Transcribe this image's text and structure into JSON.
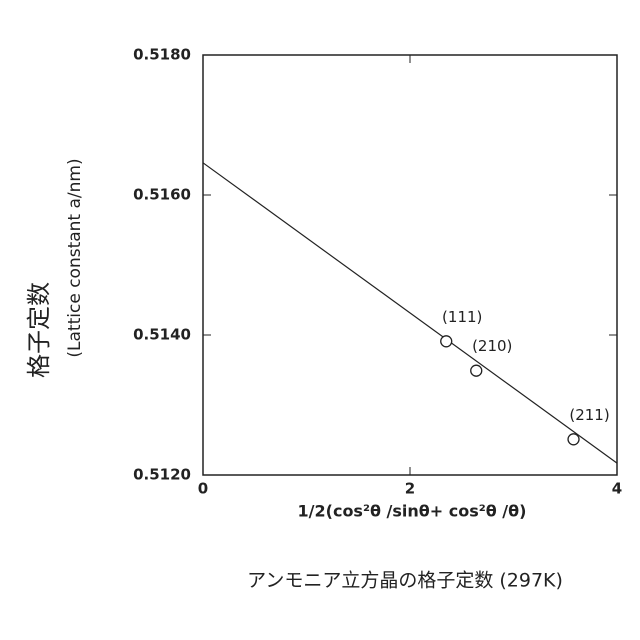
{
  "chart_data": {
    "type": "scatter",
    "y_label": "格子定数",
    "y_label_sub": "(Lattice constant a/nm)",
    "x_label": "1/2(cos²θ /sinθ+ cos²θ /θ)",
    "caption": "アンモニア立方晶の格子定数 (297K)",
    "xlim": [
      0,
      4
    ],
    "xticks": [
      0,
      2,
      4
    ],
    "ylim": [
      0.512,
      0.518
    ],
    "yticks": [
      {
        "value": 0.512,
        "label": "0.5120"
      },
      {
        "value": 0.514,
        "label": "0.5140"
      },
      {
        "value": 0.516,
        "label": "0.5160"
      },
      {
        "value": 0.518,
        "label": "0.5180"
      }
    ],
    "points": {
      "x": [
        2.35,
        2.64,
        3.58
      ],
      "y": [
        0.51391,
        0.51349,
        0.51251
      ],
      "labels": [
        "(111)",
        "(210)",
        "(211)"
      ],
      "color": "#222222"
    },
    "fit_line": {
      "x": [
        0,
        4
      ],
      "y": [
        0.51646,
        0.51217
      ],
      "color": "#222222"
    }
  }
}
